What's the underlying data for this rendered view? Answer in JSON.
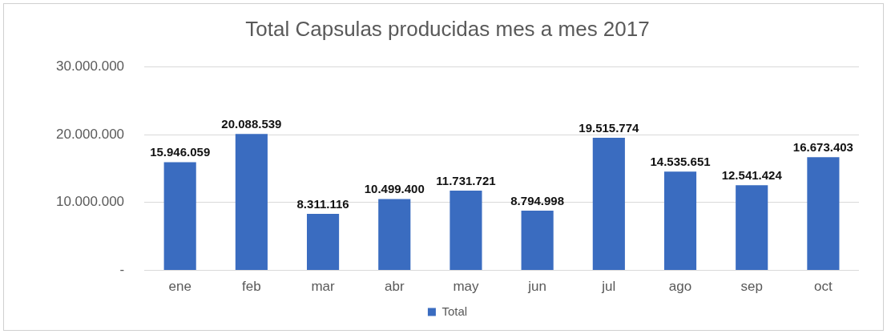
{
  "chart_data": {
    "type": "bar",
    "title": "Total Capsulas producidas mes a mes 2017",
    "categories": [
      "ene",
      "feb",
      "mar",
      "abr",
      "may",
      "jun",
      "jul",
      "ago",
      "sep",
      "oct"
    ],
    "series": [
      {
        "name": "Total",
        "color": "#3a6cc0",
        "values": [
          15946059,
          20088539,
          8311116,
          10499400,
          11731721,
          8794998,
          19515774,
          14535651,
          12541424,
          16673403
        ],
        "value_labels": [
          "15.946.059",
          "20.088.539",
          "8.311.116",
          "10.499.400",
          "11.731.721",
          "8.794.998",
          "19.515.774",
          "14.535.651",
          "12.541.424",
          "16.673.403"
        ]
      }
    ],
    "ylim": [
      0,
      30000000
    ],
    "yticks": [
      {
        "value": 0,
        "label": "-"
      },
      {
        "value": 10000000,
        "label": "10.000.000"
      },
      {
        "value": 20000000,
        "label": "20.000.000"
      },
      {
        "value": 30000000,
        "label": "30.000.000"
      }
    ],
    "grid": "y",
    "legend": "bottom"
  }
}
